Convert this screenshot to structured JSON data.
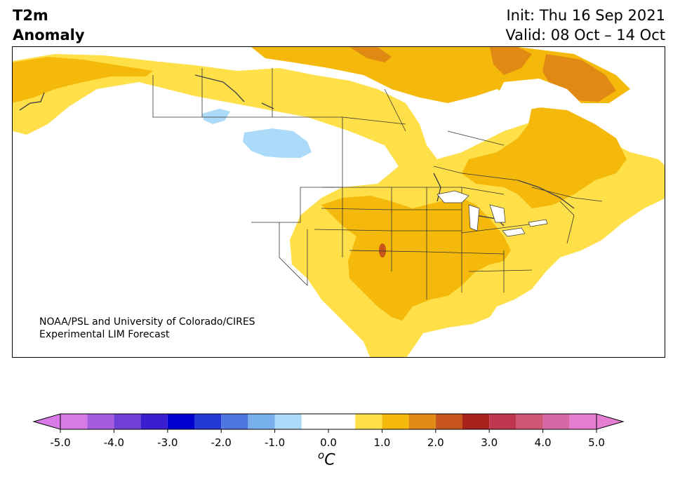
{
  "title": {
    "line1": "T2m",
    "line2": "Anomaly"
  },
  "info": {
    "init": "Init: Thu 16 Sep 2021",
    "valid": "Valid: 08 Oct – 14 Oct"
  },
  "credit": {
    "line1": "NOAA/PSL and University of Colorado/CIRES",
    "line2": "Experimental LIM Forecast"
  },
  "colorbar": {
    "unit_base": "C",
    "unit_sup": "o",
    "ticks": [
      "-5.0",
      "-4.0",
      "-3.0",
      "-2.0",
      "-1.0",
      "0.0",
      "1.0",
      "2.0",
      "3.0",
      "4.0",
      "5.0"
    ],
    "levels": [
      -5.0,
      -4.5,
      -4.0,
      -3.5,
      -3.0,
      -2.5,
      -2.0,
      -1.5,
      -1.0,
      -0.5,
      0.5,
      1.0,
      1.5,
      2.0,
      2.5,
      3.0,
      3.5,
      4.0,
      4.5,
      5.0
    ],
    "colors": [
      "#d77ae6",
      "#a75ce0",
      "#7040d6",
      "#3b1ed0",
      "#0000d1",
      "#2438d6",
      "#4e76e2",
      "#78b0ee",
      "#abdbf8",
      "#ffffff",
      "#ffe048",
      "#f4b90a",
      "#e08a14",
      "#c8561c",
      "#a8221e",
      "#bf3650",
      "#cf5576",
      "#d768a6",
      "#e57dd0"
    ],
    "under_color": "#d77ae6",
    "over_color": "#e57dd0"
  },
  "map": {
    "region": "North America",
    "colors": {
      "land": "#ffffff",
      "anom_0_5_1": "#ffe048",
      "anom_1_1_5": "#f4b90a",
      "anom_1_5_2": "#e08a14",
      "anom_2_2_5": "#c8561c",
      "anom_neg_0_5_1": "#abdbf8",
      "border": "#333333"
    }
  }
}
